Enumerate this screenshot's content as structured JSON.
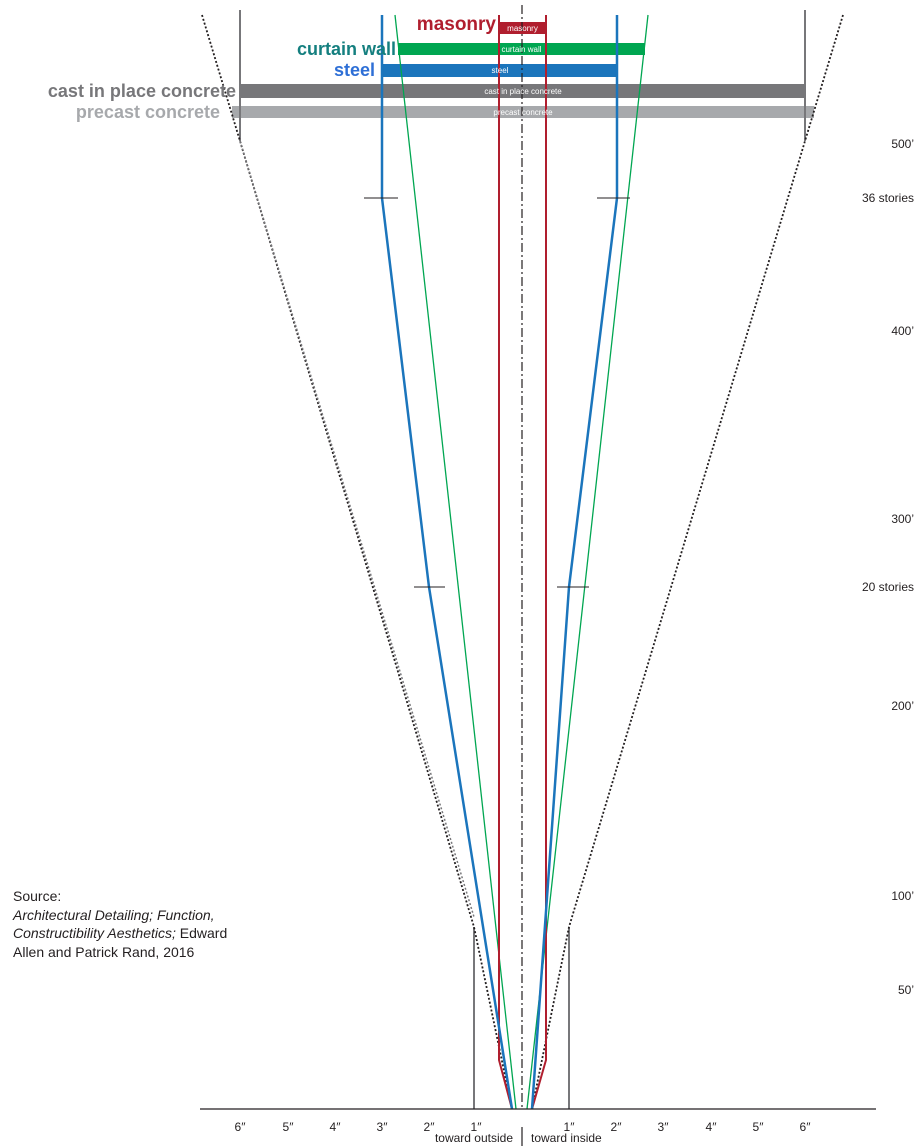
{
  "systems": [
    {
      "key": "masonry",
      "label": "masonry",
      "color": "#b01e2e"
    },
    {
      "key": "curtain_wall",
      "label": "curtain wall",
      "label_color": "#147f7f",
      "color": "#00a651"
    },
    {
      "key": "steel",
      "label": "steel",
      "label_color": "#2e6fd6",
      "color": "#1b75bc"
    },
    {
      "key": "cast_in_place",
      "label": "cast in place concrete",
      "color": "#77777a"
    },
    {
      "key": "precast",
      "label": "precast concrete",
      "color": "#a7a9ac"
    }
  ],
  "height_axis": [
    {
      "label": "500’"
    },
    {
      "label": "36 stories"
    },
    {
      "label": "400’"
    },
    {
      "label": "300’"
    },
    {
      "label": "20 stories"
    },
    {
      "label": "200’"
    },
    {
      "label": "100’"
    },
    {
      "label": "50’"
    }
  ],
  "offset_axis": {
    "left_ticks": [
      "6″",
      "5″",
      "4″",
      "3″",
      "2″",
      "1″"
    ],
    "right_ticks": [
      "1″",
      "2″",
      "3″",
      "4″",
      "5″",
      "6″"
    ],
    "left_caption": "toward outside",
    "right_caption": "toward inside"
  },
  "source": {
    "heading": "Source:",
    "title": "Architectural Detailing; Function, Constructibility Aesthetics;",
    "authors": " Edward Allen and Patrick Rand, 2016"
  }
}
